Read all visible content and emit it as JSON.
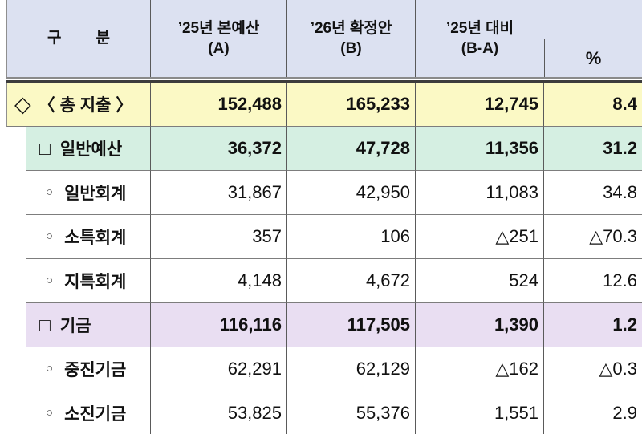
{
  "header": {
    "category": {
      "char1": "구",
      "char2": "분"
    },
    "col_a": {
      "line1": "’25년 본예산",
      "line2": "(A)"
    },
    "col_b": {
      "line1": "’26년 확정안",
      "line2": "(B)"
    },
    "col_diff": {
      "line1": "’25년 대비",
      "line2": "(B-A)"
    },
    "col_pct": "%"
  },
  "rows": [
    {
      "bullet": "◇",
      "label": "〈 총 지출 〉",
      "a": "152,488",
      "b": "165,233",
      "diff": "12,745",
      "pct": "8.4",
      "style": "total"
    },
    {
      "bullet": "□",
      "label": "일반예산",
      "a": "36,372",
      "b": "47,728",
      "diff": "11,356",
      "pct": "31.2",
      "style": "group-green"
    },
    {
      "bullet": "○",
      "label": "일반회계",
      "a": "31,867",
      "b": "42,950",
      "diff": "11,083",
      "pct": "34.8",
      "style": "detail"
    },
    {
      "bullet": "○",
      "label": "소특회계",
      "a": "357",
      "b": "106",
      "diff": "△251",
      "pct": "△70.3",
      "style": "detail"
    },
    {
      "bullet": "○",
      "label": "지특회계",
      "a": "4,148",
      "b": "4,672",
      "diff": "524",
      "pct": "12.6",
      "style": "detail"
    },
    {
      "bullet": "□",
      "label": "기금",
      "a": "116,116",
      "b": "117,505",
      "diff": "1,390",
      "pct": "1.2",
      "style": "group-purple"
    },
    {
      "bullet": "○",
      "label": "중진기금",
      "a": "62,291",
      "b": "62,129",
      "diff": "△162",
      "pct": "△0.3",
      "style": "detail"
    },
    {
      "bullet": "○",
      "label": "소진기금",
      "a": "53,825",
      "b": "55,376",
      "diff": "1,551",
      "pct": "2.9",
      "style": "detail"
    }
  ],
  "colors": {
    "header-bg": "#dce1f1",
    "total-row-bg": "#fbf9c5",
    "general-row-bg": "#d5efe2",
    "fund-row-bg": "#e9def2",
    "grid-line": "#5a5a5a",
    "row-line": "#7d7d7d",
    "text": "#111111"
  }
}
